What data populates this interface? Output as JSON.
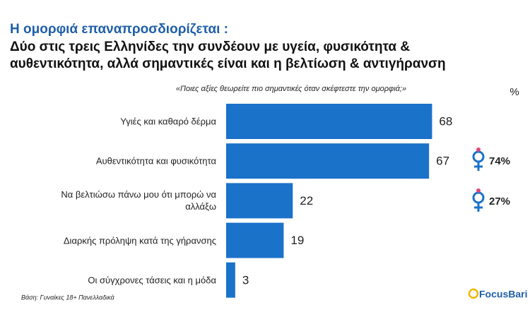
{
  "chart_data": {
    "type": "hbar",
    "header": "Η ομορφιά επαναπροσδιορίζεται :",
    "title": [
      "Δύο στις τρεις Ελληνίδες την συνδέουν με υγεία, φυσικότητα &",
      "αυθεντικότητα, αλλά σημαντικές είναι και η βελτίωση & αντιγήρανση"
    ],
    "question": "«Ποιες  αξίες θεωρείτε πιο σημαντικές όταν σκέφτεστε την ομορφιά;»",
    "unit": "%",
    "categories": [
      "Υγιές και καθαρό δέρμα",
      "Αυθεντικότητα και φυσικότητα",
      "Να βελτιώσω πάνω μου ότι μπορώ να αλλάξω",
      "Διαρκής πρόληψη κατά της γήρανσης",
      "Οι σύγχρονες τάσεις και η μόδα"
    ],
    "values": [
      68,
      67,
      22,
      19,
      3
    ],
    "color": "#1b72c9",
    "xlim": [
      0,
      70
    ],
    "side_values": [
      74,
      27
    ],
    "side_value_labels": [
      "74%",
      "27%"
    ],
    "note": "Βάση: Γυναίκες 18+ Πανελλαδικά",
    "logo": "FocusBari"
  }
}
